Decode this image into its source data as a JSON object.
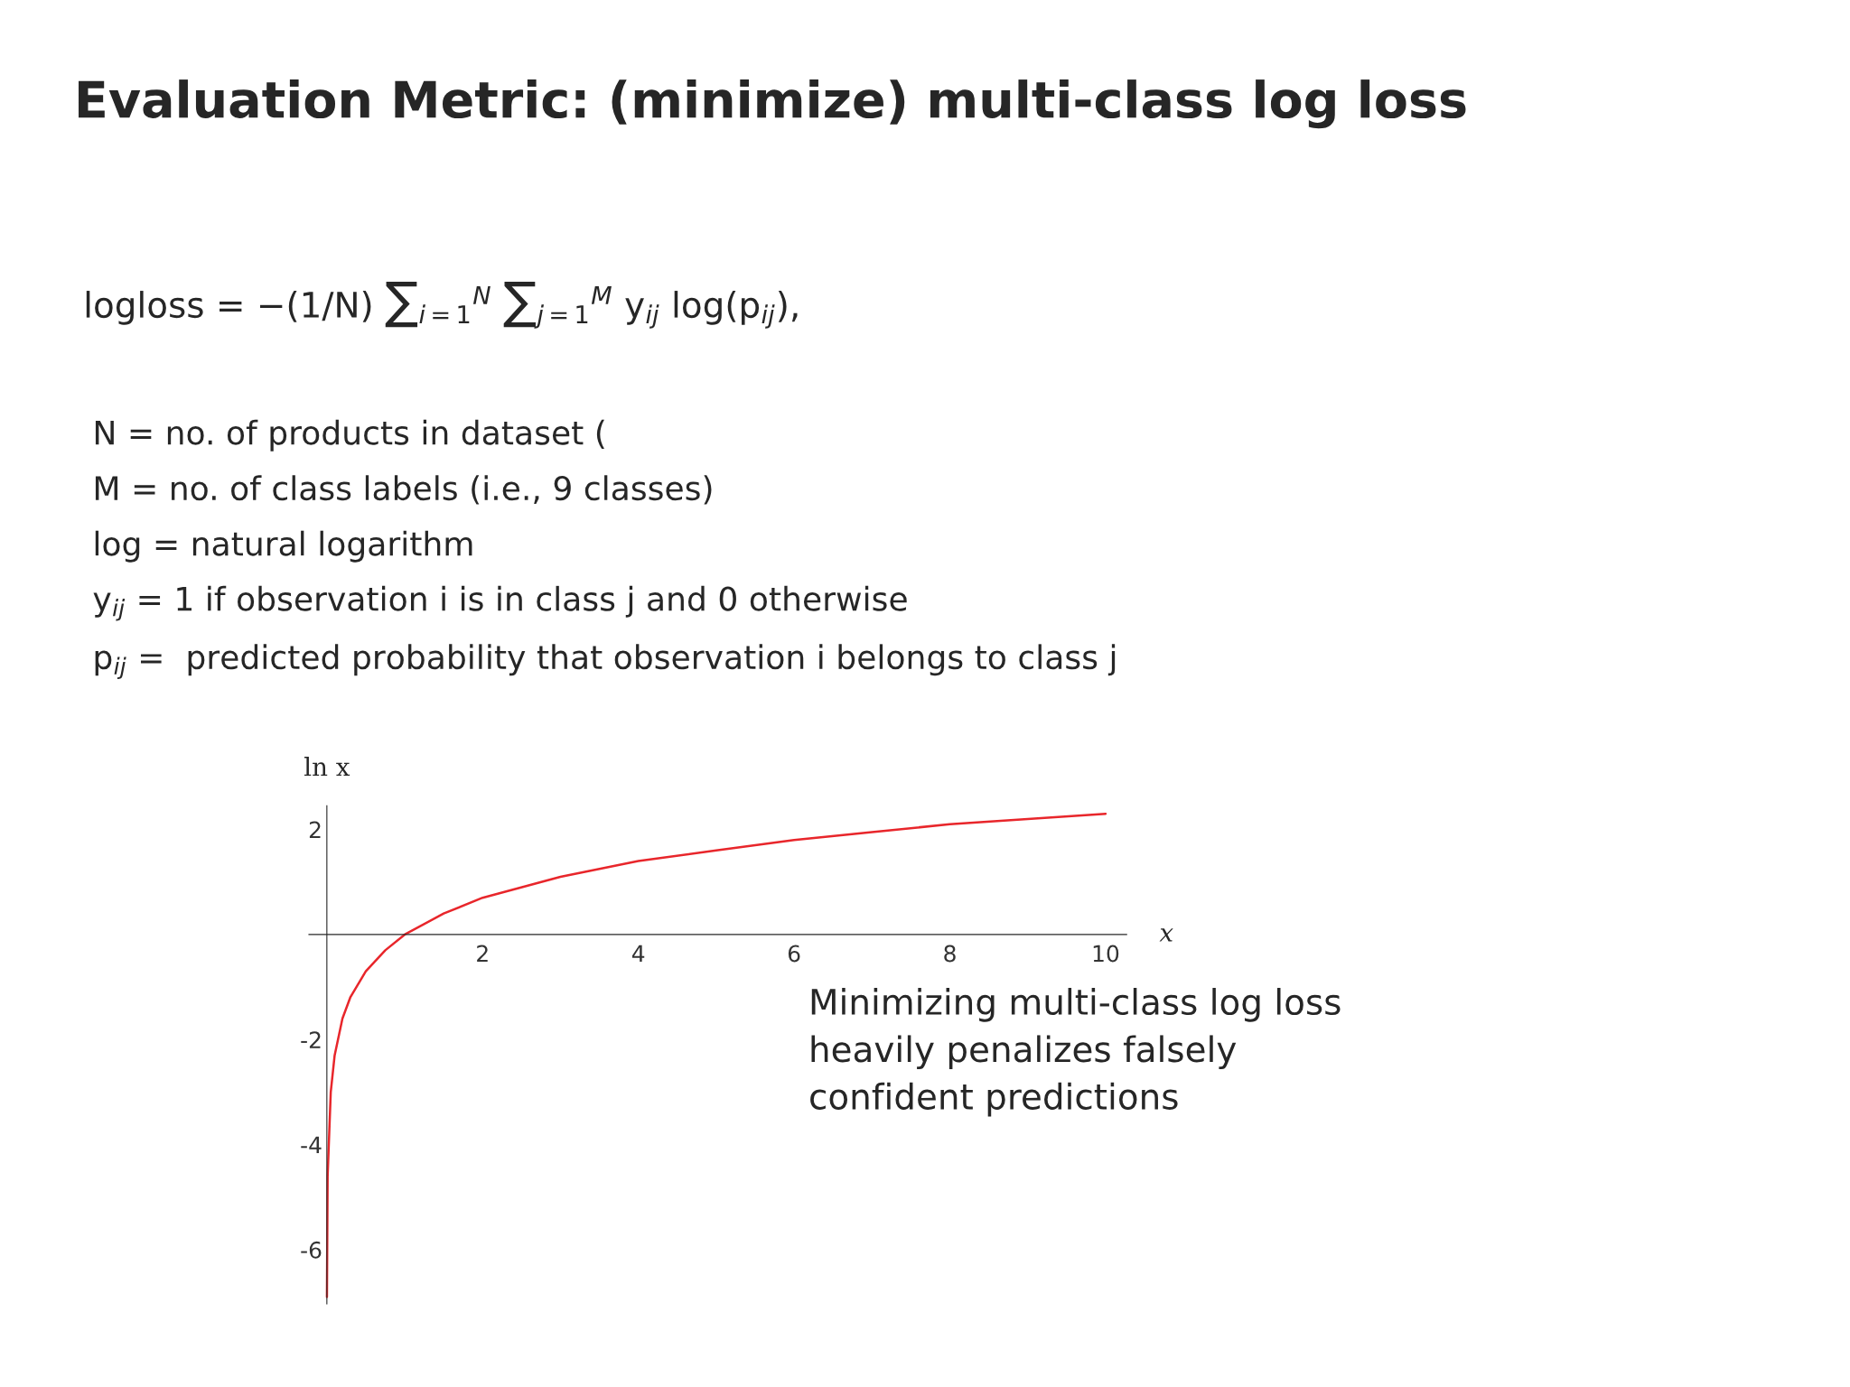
{
  "chart_data": {
    "type": "line",
    "title": "Evaluation Metric: (minimize) multi-class log loss",
    "annotations": [
      "logloss = −(1/N) ∑$_{i=1}$$^{N}$ ∑$_{j=1}$$^{M}$ y$_{ij}$ log(p$_{ij}$),",
      "N = no. of products in dataset (",
      "M = no. of class labels (i.e., 9 classes)",
      "log = natural logarithm",
      "y$_{ij}$ = 1 if observation i is in class j and 0 otherwise",
      "p$_{ij}$ =  predicted probability that observation i belongs to class j",
      "Minimizing multi-class log loss\nheavily penalizes falsely\nconfident predictions"
    ],
    "xlabel": "x",
    "ylabel": "ln x",
    "x": [
      0.001,
      0.01,
      0.05,
      0.1,
      0.2,
      0.3,
      0.5,
      0.75,
      1,
      1.5,
      2,
      3,
      4,
      5,
      6,
      7,
      8,
      9,
      10
    ],
    "series": [
      {
        "color": "#e8262b",
        "values": [
          -6.9,
          -4.6,
          -3.0,
          -2.3,
          -1.6,
          -1.2,
          -0.7,
          -0.3,
          0,
          0.4,
          0.7,
          1.1,
          1.4,
          1.6,
          1.8,
          1.95,
          2.1,
          2.2,
          2.3
        ]
      }
    ],
    "xlim": [
      -0.23,
      10.27
    ],
    "ylim": [
      -7.03,
      2.45
    ],
    "xticks": [
      2,
      4,
      6,
      8,
      10
    ],
    "yticks": [
      -6,
      -4,
      -2,
      2
    ],
    "grid": false
  }
}
